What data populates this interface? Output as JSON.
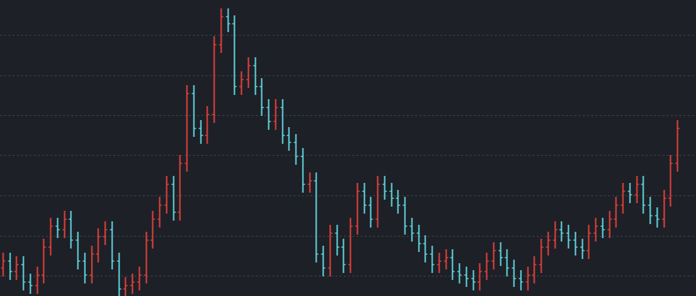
{
  "chart_data": {
    "type": "ohlc",
    "ylim": [
      0,
      424
    ],
    "yticks": [
      29,
      86,
      144,
      202,
      259,
      316,
      374
    ],
    "grid": true,
    "up_color": "#e0403a",
    "down_color": "#5fd4dc",
    "open": [
      40,
      50,
      35,
      45,
      20,
      15,
      30,
      70,
      100,
      95,
      110,
      80,
      50,
      30,
      60,
      85,
      95,
      50,
      10,
      15,
      20,
      30,
      80,
      110,
      130,
      160,
      120,
      190,
      290,
      240,
      230,
      260,
      360,
      400,
      390,
      300,
      310,
      330,
      300,
      270,
      250,
      270,
      230,
      220,
      200,
      160,
      165,
      60,
      40,
      90,
      70,
      45,
      100,
      150,
      130,
      110,
      160,
      150,
      140,
      130,
      100,
      90,
      75,
      60,
      45,
      50,
      55,
      35,
      30,
      25,
      20,
      35,
      50,
      65,
      55,
      40,
      25,
      20,
      30,
      45,
      70,
      80,
      95,
      90,
      80,
      70,
      65,
      90,
      100,
      95,
      110,
      130,
      150,
      145,
      160,
      130,
      115,
      110,
      140,
      190
    ],
    "high": [
      62,
      62,
      57,
      57,
      32,
      42,
      82,
      112,
      112,
      122,
      122,
      92,
      62,
      72,
      97,
      107,
      107,
      62,
      27,
      32,
      42,
      92,
      122,
      142,
      172,
      172,
      202,
      302,
      302,
      252,
      272,
      372,
      412,
      412,
      402,
      322,
      342,
      342,
      312,
      282,
      282,
      282,
      242,
      232,
      212,
      177,
      177,
      72,
      102,
      102,
      82,
      112,
      162,
      162,
      142,
      172,
      172,
      162,
      152,
      142,
      112,
      102,
      87,
      72,
      62,
      67,
      67,
      47,
      42,
      37,
      47,
      62,
      77,
      77,
      67,
      52,
      37,
      42,
      57,
      82,
      92,
      107,
      107,
      102,
      92,
      82,
      102,
      112,
      112,
      122,
      142,
      162,
      162,
      172,
      172,
      142,
      127,
      152,
      202,
      252
    ],
    "low": [
      28,
      23,
      23,
      8,
      3,
      3,
      18,
      58,
      83,
      83,
      68,
      38,
      18,
      18,
      48,
      73,
      38,
      0,
      0,
      3,
      8,
      18,
      68,
      98,
      118,
      108,
      108,
      178,
      228,
      218,
      218,
      248,
      348,
      378,
      288,
      288,
      298,
      288,
      258,
      238,
      238,
      218,
      208,
      188,
      148,
      148,
      48,
      28,
      28,
      58,
      33,
      33,
      88,
      118,
      98,
      98,
      138,
      128,
      118,
      88,
      78,
      63,
      48,
      33,
      33,
      38,
      23,
      18,
      13,
      8,
      8,
      23,
      38,
      43,
      28,
      13,
      8,
      8,
      18,
      33,
      58,
      68,
      78,
      68,
      58,
      53,
      53,
      78,
      83,
      83,
      98,
      118,
      133,
      133,
      118,
      103,
      98,
      98,
      128,
      178
    ],
    "close": [
      50,
      35,
      45,
      20,
      15,
      30,
      70,
      100,
      95,
      110,
      80,
      50,
      30,
      60,
      85,
      95,
      50,
      10,
      15,
      20,
      30,
      80,
      110,
      130,
      160,
      120,
      190,
      290,
      240,
      230,
      260,
      360,
      400,
      390,
      300,
      310,
      330,
      300,
      270,
      250,
      270,
      230,
      220,
      200,
      160,
      165,
      60,
      40,
      90,
      70,
      45,
      100,
      150,
      130,
      110,
      160,
      150,
      140,
      130,
      100,
      90,
      75,
      60,
      45,
      50,
      55,
      35,
      30,
      25,
      20,
      35,
      50,
      65,
      55,
      40,
      25,
      20,
      30,
      45,
      70,
      80,
      95,
      90,
      80,
      70,
      65,
      90,
      100,
      95,
      110,
      130,
      150,
      145,
      160,
      130,
      115,
      110,
      140,
      190,
      240
    ]
  }
}
